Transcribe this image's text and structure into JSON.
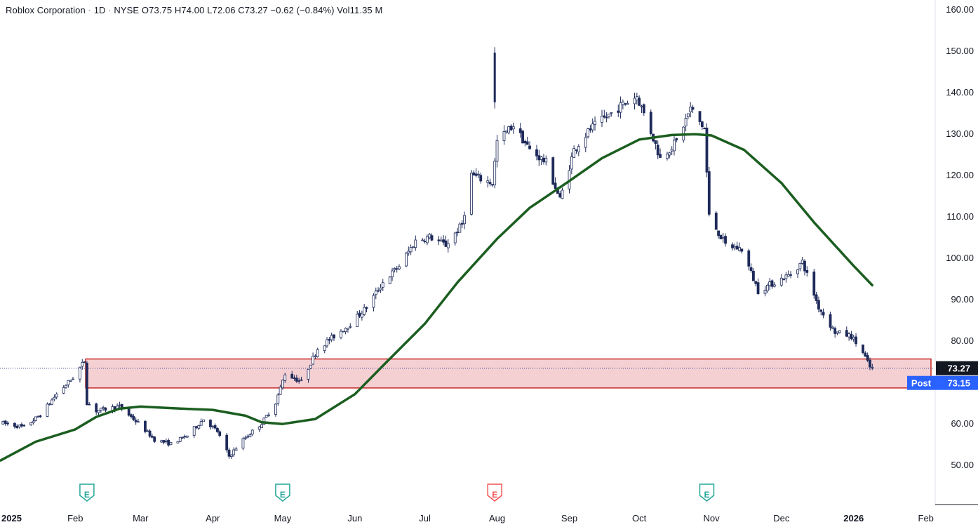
{
  "header": {
    "name": "Roblox Corporation",
    "sep1": "·",
    "interval": "1D",
    "sep2": "·",
    "exchange": "NYSE",
    "o_label": "O",
    "o_value": "73.75",
    "h_label": "H",
    "h_value": "74.00",
    "l_label": "L",
    "l_value": "72.06",
    "c_label": "C",
    "c_value": "73.27",
    "change": "−0.62 (−0.84%)",
    "vol_label": "Vol",
    "vol_value": "11.35 M"
  },
  "colors": {
    "candle": "#1e2a5a",
    "ma": "#1b5e20",
    "zone_fill": "#f5d0d3",
    "zone_stroke": "#c62828",
    "last_price_bg": "#131722",
    "post_bg": "#2962ff",
    "earnings_green": "#26a69a",
    "earnings_red": "#ef5350"
  },
  "last_price": {
    "value": 73.27,
    "label": "73.27"
  },
  "post_price": {
    "value": 73.15,
    "label": "73.15",
    "tag": "Post"
  },
  "earnings": [
    {
      "date": "2025-02-06",
      "label": "E",
      "color": "green"
    },
    {
      "date": "2025-05-01",
      "label": "E",
      "color": "green"
    },
    {
      "date": "2025-07-31",
      "label": "E",
      "color": "red"
    },
    {
      "date": "2025-10-30",
      "label": "E",
      "color": "green"
    }
  ],
  "chart_data": {
    "type": "candlestick",
    "y_axis": {
      "min": 42,
      "max": 161,
      "ticks": [
        50,
        60,
        70,
        80,
        90,
        100,
        110,
        120,
        130,
        140,
        150,
        160
      ],
      "tick_labels": [
        "50.00",
        "60.00",
        "70.00",
        "80.00",
        "90.00",
        "100.00",
        "110.00",
        "120.00",
        "130.00",
        "140.00",
        "150.00",
        "160.00"
      ]
    },
    "x_axis": {
      "start": "2024-12-31",
      "end": "2026-02-05",
      "ticks": [
        {
          "date": "2025-01-01",
          "label": "2025",
          "year": true
        },
        {
          "date": "2025-02-01",
          "label": "Feb"
        },
        {
          "date": "2025-03-01",
          "label": "Mar"
        },
        {
          "date": "2025-04-01",
          "label": "Apr"
        },
        {
          "date": "2025-05-01",
          "label": "May"
        },
        {
          "date": "2025-06-01",
          "label": "Jun"
        },
        {
          "date": "2025-07-01",
          "label": "Jul"
        },
        {
          "date": "2025-08-01",
          "label": "Aug"
        },
        {
          "date": "2025-09-01",
          "label": "Sep"
        },
        {
          "date": "2025-10-01",
          "label": "Oct"
        },
        {
          "date": "2025-11-01",
          "label": "Nov"
        },
        {
          "date": "2025-12-01",
          "label": "Dec"
        },
        {
          "date": "2026-01-01",
          "label": "2026",
          "year": true
        },
        {
          "date": "2026-02-01",
          "label": "Feb"
        }
      ]
    },
    "zone": {
      "date_from": "2025-02-01",
      "date_to": "2026-01-31",
      "price_low": 68.5,
      "price_high": 75.5
    },
    "close_path": [
      [
        "2025-01-01",
        60.0
      ],
      [
        "2025-01-10",
        59.0
      ],
      [
        "2025-01-17",
        62.0
      ],
      [
        "2025-01-24",
        67.0
      ],
      [
        "2025-01-31",
        71.0
      ],
      [
        "2025-02-05",
        75.0
      ],
      [
        "2025-02-06",
        65.0
      ],
      [
        "2025-02-10",
        63.0
      ],
      [
        "2025-02-20",
        64.0
      ],
      [
        "2025-02-28",
        60.0
      ],
      [
        "2025-03-07",
        56.0
      ],
      [
        "2025-03-14",
        55.0
      ],
      [
        "2025-03-21",
        57.0
      ],
      [
        "2025-03-28",
        61.0
      ],
      [
        "2025-04-03",
        58.0
      ],
      [
        "2025-04-08",
        52.0
      ],
      [
        "2025-04-14",
        56.0
      ],
      [
        "2025-04-22",
        60.0
      ],
      [
        "2025-04-28",
        65.0
      ],
      [
        "2025-05-02",
        72.0
      ],
      [
        "2025-05-09",
        70.0
      ],
      [
        "2025-05-16",
        78.0
      ],
      [
        "2025-05-23",
        81.0
      ],
      [
        "2025-05-30",
        84.0
      ],
      [
        "2025-06-06",
        88.0
      ],
      [
        "2025-06-13",
        94.0
      ],
      [
        "2025-06-20",
        98.0
      ],
      [
        "2025-06-27",
        104.0
      ],
      [
        "2025-07-03",
        105.0
      ],
      [
        "2025-07-10",
        103.0
      ],
      [
        "2025-07-17",
        108.0
      ],
      [
        "2025-07-21",
        120.0
      ],
      [
        "2025-07-25",
        119.0
      ],
      [
        "2025-07-30",
        118.0
      ],
      [
        "2025-08-01",
        128.0
      ],
      [
        "2025-08-08",
        132.0
      ],
      [
        "2025-08-15",
        126.0
      ],
      [
        "2025-08-22",
        123.0
      ],
      [
        "2025-08-28",
        114.0
      ],
      [
        "2025-09-03",
        126.0
      ],
      [
        "2025-09-10",
        131.0
      ],
      [
        "2025-09-17",
        134.0
      ],
      [
        "2025-09-24",
        137.0
      ],
      [
        "2025-09-30",
        139.0
      ],
      [
        "2025-10-05",
        132.0
      ],
      [
        "2025-10-10",
        124.0
      ],
      [
        "2025-10-17",
        128.0
      ],
      [
        "2025-10-23",
        136.0
      ],
      [
        "2025-10-29",
        131.0
      ],
      [
        "2025-10-31",
        110.0
      ],
      [
        "2025-11-07",
        103.0
      ],
      [
        "2025-11-14",
        102.0
      ],
      [
        "2025-11-21",
        92.0
      ],
      [
        "2025-11-28",
        94.0
      ],
      [
        "2025-12-05",
        96.0
      ],
      [
        "2025-12-10",
        99.0
      ],
      [
        "2025-12-17",
        88.0
      ],
      [
        "2025-12-24",
        82.0
      ],
      [
        "2025-12-31",
        81.0
      ],
      [
        "2026-01-05",
        77.0
      ],
      [
        "2026-01-08",
        73.5
      ],
      [
        "2026-01-09",
        73.27
      ]
    ],
    "series": [
      {
        "name": "",
        "type": "line",
        "points": [
          [
            "2024-12-31",
            51.0
          ],
          [
            "2025-01-15",
            55.5
          ],
          [
            "2025-02-01",
            58.5
          ],
          [
            "2025-02-10",
            61.5
          ],
          [
            "2025-02-20",
            63.5
          ],
          [
            "2025-03-01",
            64.0
          ],
          [
            "2025-03-15",
            63.6
          ],
          [
            "2025-04-01",
            63.2
          ],
          [
            "2025-04-15",
            61.8
          ],
          [
            "2025-04-22",
            60.2
          ],
          [
            "2025-05-01",
            59.8
          ],
          [
            "2025-05-15",
            61.0
          ],
          [
            "2025-06-01",
            67.0
          ],
          [
            "2025-06-15",
            75.0
          ],
          [
            "2025-07-01",
            84.0
          ],
          [
            "2025-07-15",
            94.0
          ],
          [
            "2025-08-01",
            104.5
          ],
          [
            "2025-08-15",
            112.0
          ],
          [
            "2025-09-01",
            118.5
          ],
          [
            "2025-09-15",
            124.0
          ],
          [
            "2025-10-01",
            128.5
          ],
          [
            "2025-10-15",
            129.6
          ],
          [
            "2025-10-25",
            129.8
          ],
          [
            "2025-11-01",
            129.5
          ],
          [
            "2025-11-15",
            126.0
          ],
          [
            "2025-12-01",
            118.0
          ],
          [
            "2025-12-15",
            108.5
          ],
          [
            "2026-01-01",
            98.0
          ],
          [
            "2026-01-09",
            93.3
          ]
        ]
      }
    ]
  }
}
